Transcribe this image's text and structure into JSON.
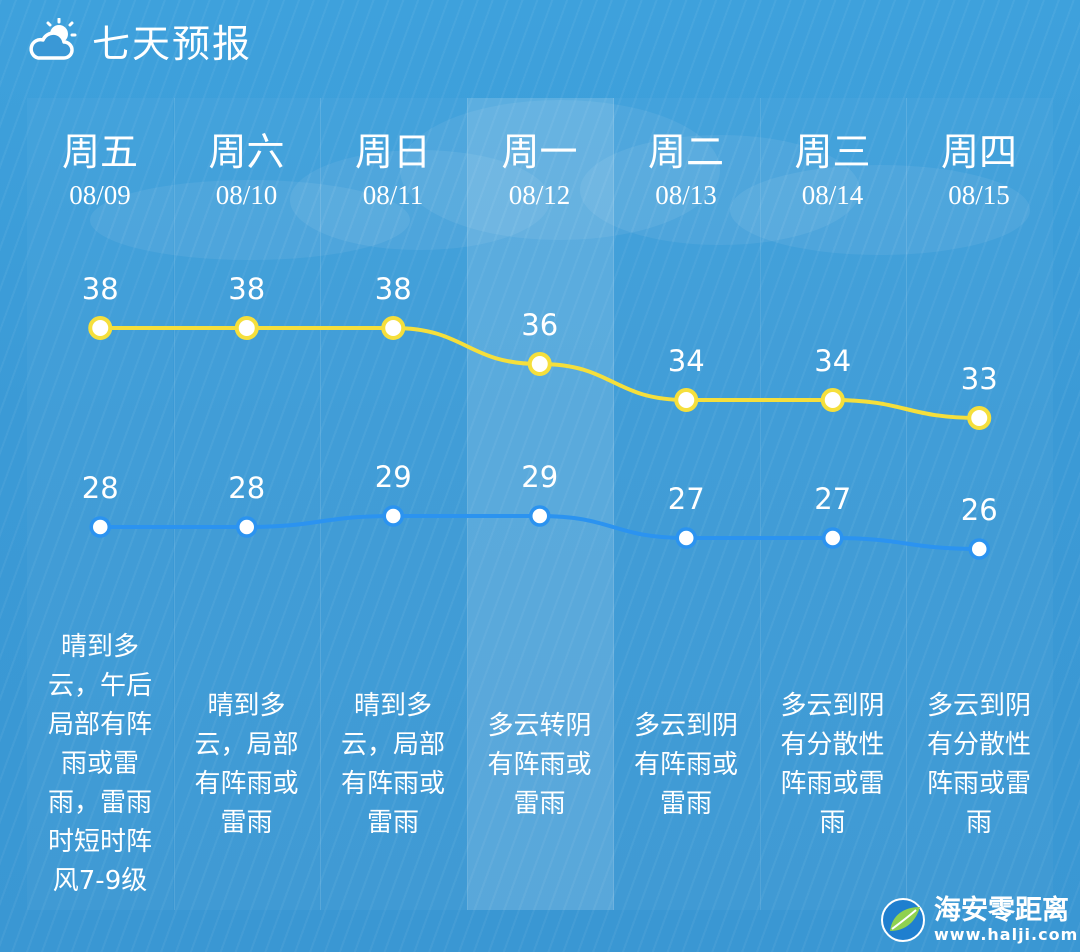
{
  "header": {
    "title": "七天预报",
    "icon": "cloud-sun-icon"
  },
  "days": [
    {
      "name": "周五",
      "date": "08/09",
      "desc_lines": [
        "晴到多",
        "云，午后",
        "局部有阵",
        "雨或雷",
        "雨，雷雨",
        "时短时阵",
        "风7-9级"
      ]
    },
    {
      "name": "周六",
      "date": "08/10",
      "desc_lines": [
        "晴到多",
        "云，局部",
        "有阵雨或",
        "雷雨"
      ]
    },
    {
      "name": "周日",
      "date": "08/11",
      "desc_lines": [
        "晴到多",
        "云，局部",
        "有阵雨或",
        "雷雨"
      ]
    },
    {
      "name": "周一",
      "date": "08/12",
      "desc_lines": [
        "多云转阴",
        "有阵雨或",
        "雷雨"
      ]
    },
    {
      "name": "周二",
      "date": "08/13",
      "desc_lines": [
        "多云到阴",
        "有阵雨或",
        "雷雨"
      ]
    },
    {
      "name": "周三",
      "date": "08/14",
      "desc_lines": [
        "多云到阴",
        "有分散性",
        "阵雨或雷",
        "雨"
      ]
    },
    {
      "name": "周四",
      "date": "08/15",
      "desc_lines": [
        "多云到阴",
        "有分散性",
        "阵雨或雷",
        "雨"
      ]
    }
  ],
  "chart_data": {
    "type": "line",
    "x": [
      "08/09",
      "08/10",
      "08/11",
      "08/12",
      "08/13",
      "08/14",
      "08/15"
    ],
    "series": [
      {
        "values": [
          38,
          38,
          38,
          36,
          34,
          34,
          33
        ],
        "color": "#f5df3c",
        "labels": "above"
      },
      {
        "values": [
          28,
          28,
          29,
          29,
          27,
          27,
          26
        ],
        "color": "#2b93f0",
        "labels": "above"
      }
    ],
    "highlighted_index": 3,
    "grid": false,
    "legend": "none"
  },
  "watermark": {
    "name": "海安零距离",
    "url": "www.halji.com",
    "icon": "globe-leaf-logo"
  }
}
